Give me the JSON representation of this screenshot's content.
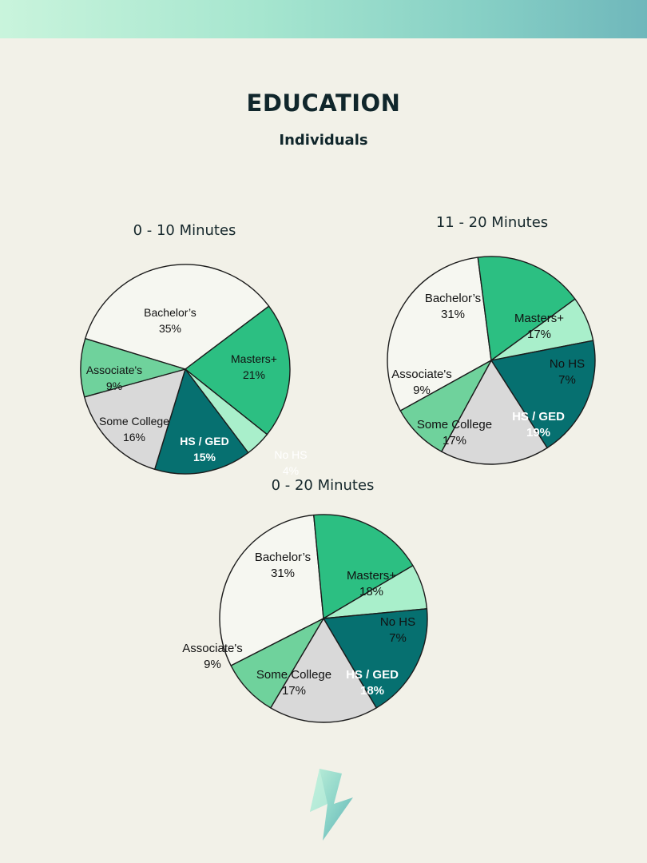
{
  "header": {
    "title": "EDUCATION",
    "subtitle": "Individuals"
  },
  "colors": {
    "band_start": "#c9f4dc",
    "band_end": "#6fb7bb",
    "background": "#f2f1e8",
    "Bachelor’s": "#f6f7f1",
    "Masters+": "#2cbf82",
    "No HS": "#a9efcb",
    "HS / GED": "#067070",
    "Some College": "#d9d9d9",
    "Associate's": "#6fd29c"
  },
  "chart_data": [
    {
      "type": "pie",
      "title": "0 - 10 Minutes",
      "slices": [
        {
          "label": "Bachelor’s",
          "percent_label": "35%",
          "value": 35
        },
        {
          "label": "Masters+",
          "percent_label": "21%",
          "value": 21
        },
        {
          "label": "No HS",
          "percent_label": "4%",
          "value": 4
        },
        {
          "label": "HS / GED",
          "percent_label": "15%",
          "value": 15
        },
        {
          "label": "Some College",
          "percent_label": "16%",
          "value": 16
        },
        {
          "label": "Associate's",
          "percent_label": "9%",
          "value": 9
        }
      ]
    },
    {
      "type": "pie",
      "title": "11 - 20 Minutes",
      "slices": [
        {
          "label": "Bachelor’s",
          "percent_label": "31%",
          "value": 31
        },
        {
          "label": "Masters+",
          "percent_label": "17%",
          "value": 17
        },
        {
          "label": "No HS",
          "percent_label": "7%",
          "value": 7
        },
        {
          "label": "HS / GED",
          "percent_label": "19%",
          "value": 19
        },
        {
          "label": "Some College",
          "percent_label": "17%",
          "value": 17
        },
        {
          "label": "Associate's",
          "percent_label": "9%",
          "value": 9
        }
      ]
    },
    {
      "type": "pie",
      "title": "0 - 20 Minutes",
      "slices": [
        {
          "label": "Bachelor’s",
          "percent_label": "31%",
          "value": 31
        },
        {
          "label": "Masters+",
          "percent_label": "18%",
          "value": 18
        },
        {
          "label": "No HS",
          "percent_label": "7%",
          "value": 7
        },
        {
          "label": "HS / GED",
          "percent_label": "18%",
          "value": 18
        },
        {
          "label": "Some College",
          "percent_label": "17%",
          "value": 17
        },
        {
          "label": "Associate's",
          "percent_label": "9%",
          "value": 9
        }
      ]
    }
  ]
}
